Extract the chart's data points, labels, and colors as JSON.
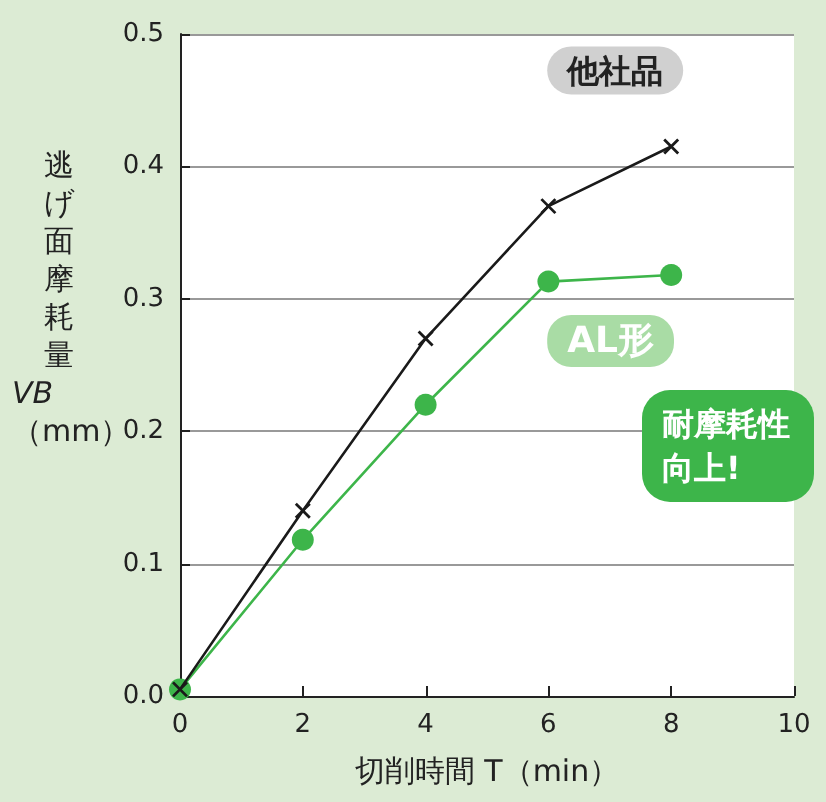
{
  "chart_data": {
    "type": "line",
    "xlabel": "切削時間 T（min）",
    "ylabel": "逃げ面摩耗量 VB（mm）",
    "x": [
      0,
      2,
      4,
      6,
      8
    ],
    "series": [
      {
        "name": "他社品",
        "color": "#1a1a1a",
        "marker": "cross",
        "values": [
          0.005,
          0.14,
          0.27,
          0.37,
          0.415
        ]
      },
      {
        "name": "AL形",
        "color": "#3db54a",
        "marker": "circle",
        "values": [
          0.005,
          0.118,
          0.22,
          0.313,
          0.318
        ]
      }
    ],
    "xlim": [
      0,
      10
    ],
    "xticks": [
      0,
      2,
      4,
      6,
      8,
      10
    ],
    "ylim": [
      0,
      0.5
    ],
    "yticks": [
      {
        "value": 0,
        "label": "0.0"
      },
      0.1,
      0.2,
      0.3,
      0.4,
      0.5
    ],
    "grid": "y",
    "legend": false,
    "annotations": [
      "耐摩耗性向上!"
    ]
  }
}
